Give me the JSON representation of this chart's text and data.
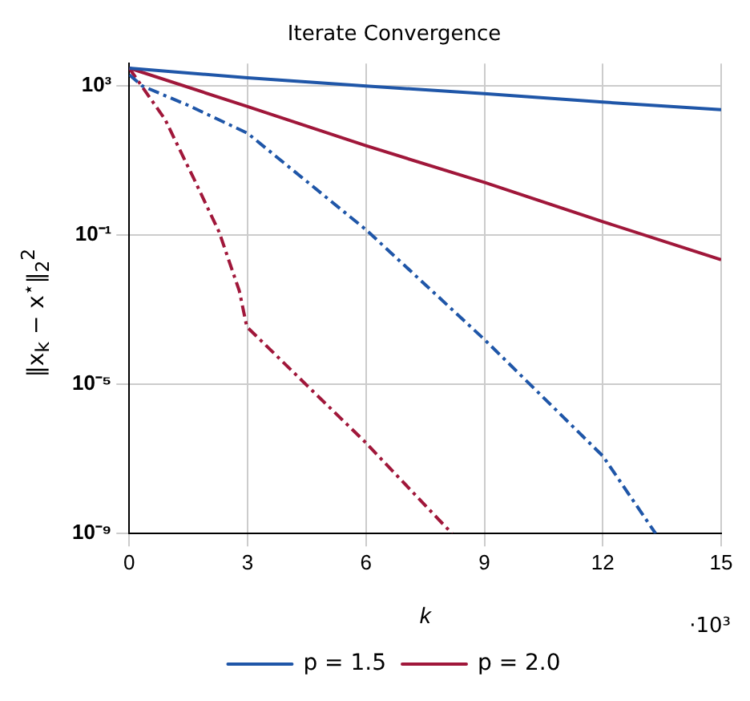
{
  "chart_data": {
    "type": "line",
    "title": "Iterate Convergence",
    "xlabel": "k",
    "ylabel": "‖x$_{k}$ − x$^{⋆}$‖$_{2}$$^{2}$",
    "annotations": [
      "·10³"
    ],
    "log": "y",
    "grid": true,
    "legend": "bottom",
    "marker": "none",
    "xlim": [
      0,
      15
    ],
    "xticks": [
      0,
      3,
      6,
      9,
      12,
      15
    ],
    "ylim": [
      1e-09,
      4000
    ],
    "yticks": [
      {
        "value": 1000,
        "label": "10³"
      },
      {
        "value": 0.1,
        "label": "10⁻¹"
      },
      {
        "value": 1e-05,
        "label": "10⁻⁵"
      },
      {
        "value": 1e-09,
        "label": "10⁻⁹"
      }
    ],
    "series": [
      {
        "name": "p = 1.5",
        "color": "#1f56a8",
        "line_style": "solid",
        "x": [
          0,
          3,
          6,
          9,
          12,
          15
        ],
        "values": [
          3000,
          1660,
          1000,
          620,
          370,
          230
        ]
      },
      {
        "name": "p = 2.0",
        "color": "#a0173a",
        "line_style": "solid",
        "x": [
          0,
          3,
          6,
          9,
          12,
          15
        ],
        "values": [
          3000,
          280,
          25,
          2.6,
          0.23,
          0.022
        ]
      },
      {
        "color": "#1f56a8",
        "line_style": "dashed",
        "x": [
          0,
          0.33,
          1.5,
          3,
          6,
          9,
          12,
          13.34
        ],
        "values": [
          2000,
          1000,
          300,
          54,
          0.14,
          0.00016,
          1.2e-07,
          1e-09
        ]
      },
      {
        "color": "#a0173a",
        "line_style": "dashed",
        "x": [
          0,
          0.91,
          1.63,
          2.28,
          2.79,
          2.98,
          4.52,
          5.97,
          8.18
        ],
        "values": [
          3000,
          126,
          3.4,
          0.12,
          0.0032,
          0.00035,
          9e-06,
          2.9e-07,
          1e-09
        ]
      }
    ]
  }
}
